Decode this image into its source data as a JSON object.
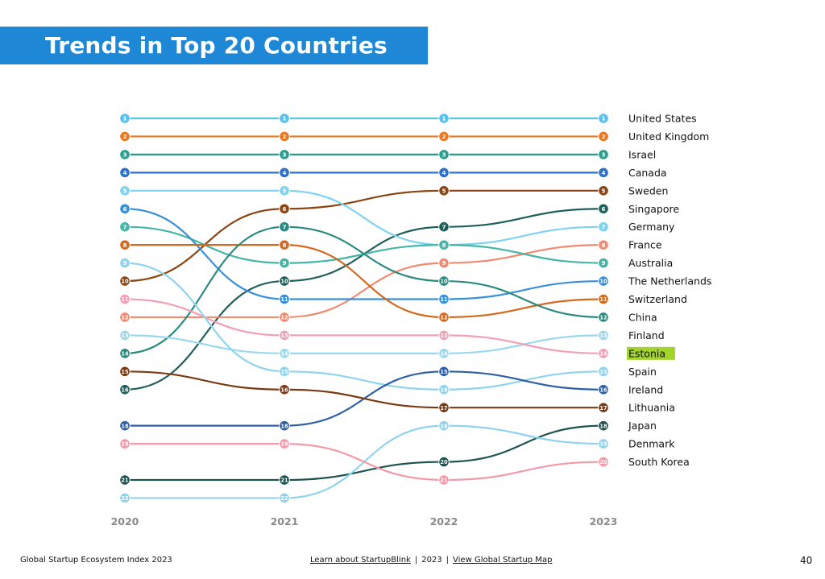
{
  "header": {
    "title": "Trends in Top 20 Countries"
  },
  "chart_data": {
    "type": "line",
    "title": "Trends in Top 20 Countries",
    "x": [
      "2020",
      "2021",
      "2022",
      "2023"
    ],
    "y_scale": "rank (1 at top)",
    "ylim": [
      1,
      22
    ],
    "series": [
      {
        "name": "United States",
        "color": "#5bc0eb",
        "ranks": [
          1,
          1,
          1,
          1
        ]
      },
      {
        "name": "United Kingdom",
        "color": "#e87722",
        "ranks": [
          2,
          2,
          2,
          2
        ]
      },
      {
        "name": "Israel",
        "color": "#2a9d8f",
        "ranks": [
          3,
          3,
          3,
          3
        ]
      },
      {
        "name": "Canada",
        "color": "#2e6fc7",
        "ranks": [
          4,
          4,
          4,
          4
        ]
      },
      {
        "name": "Sweden",
        "color": "#8b4513",
        "ranks": [
          10,
          6,
          5,
          5
        ]
      },
      {
        "name": "Singapore",
        "color": "#1f5f5b",
        "ranks": [
          16,
          10,
          7,
          6
        ]
      },
      {
        "name": "Germany",
        "color": "#7dd3f0",
        "ranks": [
          5,
          5,
          8,
          7
        ]
      },
      {
        "name": "France",
        "color": "#f08a70",
        "ranks": [
          12,
          12,
          9,
          8
        ]
      },
      {
        "name": "Australia",
        "color": "#45b5a8",
        "ranks": [
          7,
          9,
          8,
          9
        ]
      },
      {
        "name": "The Netherlands",
        "color": "#3a8fd9",
        "ranks": [
          6,
          11,
          11,
          10
        ]
      },
      {
        "name": "Switzerland",
        "color": "#d2691e",
        "ranks": [
          8,
          8,
          12,
          11
        ]
      },
      {
        "name": "China",
        "color": "#2b8a80",
        "ranks": [
          14,
          7,
          10,
          12
        ]
      },
      {
        "name": "Finland",
        "color": "#9ad8ee",
        "ranks": [
          13,
          14,
          14,
          13
        ]
      },
      {
        "name": "Estonia",
        "color": "#f2a0b5",
        "ranks": [
          11,
          13,
          13,
          14
        ],
        "highlight": "#a3d42a"
      },
      {
        "name": "Spain",
        "color": "#8fd3ec",
        "ranks": [
          9,
          15,
          16,
          15
        ]
      },
      {
        "name": "Ireland",
        "color": "#2d5fa8",
        "ranks": [
          18,
          18,
          15,
          16
        ]
      },
      {
        "name": "Lithuania",
        "color": "#7a3a14",
        "ranks": [
          15,
          16,
          17,
          17
        ]
      },
      {
        "name": "Japan",
        "color": "#1f5350",
        "ranks": [
          21,
          21,
          20,
          18
        ]
      },
      {
        "name": "Denmark",
        "color": "#8fd3ec",
        "ranks": [
          22,
          22,
          18,
          19
        ]
      },
      {
        "name": "South Korea",
        "color": "#f29aa8",
        "ranks": [
          19,
          19,
          21,
          20
        ]
      }
    ]
  },
  "footer": {
    "left": "Global Startup Ecosystem Index 2023",
    "link_about": "Learn about StartupBlink",
    "separator": "|",
    "year": "2023",
    "link_map": "View Global Startup Map",
    "page_number": "40"
  }
}
